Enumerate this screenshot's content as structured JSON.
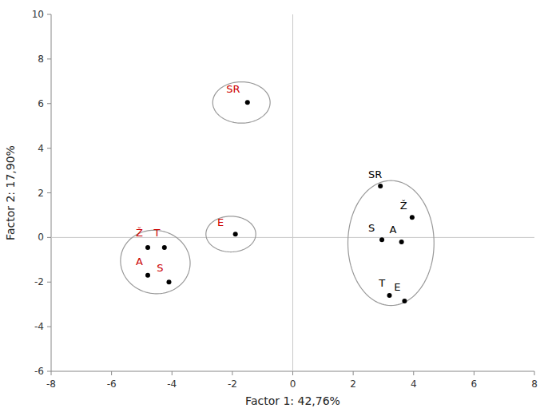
{
  "chart_data": {
    "type": "scatter",
    "xlabel": "Factor 1: 42,76%",
    "ylabel": "Factor 2: 17,90%",
    "xlim": [
      -8,
      8
    ],
    "ylim": [
      -6,
      10
    ],
    "xticks": [
      -8,
      -6,
      -4,
      -2,
      0,
      2,
      4,
      6,
      8
    ],
    "yticks": [
      -6,
      -4,
      -2,
      0,
      2,
      4,
      6,
      8,
      10
    ],
    "color": "#000000",
    "series": [
      {
        "color": "#cc0000",
        "labels": [
          "SR",
          "E",
          "Ž",
          "T",
          "A",
          "S"
        ],
        "x": [
          -1.5,
          -1.9,
          -4.8,
          -4.25,
          -4.8,
          -4.1
        ],
        "values": [
          6.05,
          0.15,
          -0.45,
          -0.45,
          -1.7,
          -2.0
        ],
        "label_x": [
          -2.2,
          -2.5,
          -5.2,
          -4.6,
          -5.2,
          -4.5
        ],
        "label_y": [
          6.4,
          0.4,
          -0.05,
          -0.05,
          -1.35,
          -1.65
        ]
      },
      {
        "color": "#000000",
        "labels": [
          "SR",
          "Ž",
          "S",
          "A",
          "T",
          "E"
        ],
        "x": [
          2.9,
          3.95,
          2.95,
          3.6,
          3.2,
          3.7
        ],
        "values": [
          2.3,
          0.9,
          -0.1,
          -0.2,
          -2.6,
          -2.85
        ],
        "label_x": [
          2.5,
          3.55,
          2.5,
          3.2,
          2.85,
          3.35
        ],
        "label_y": [
          2.55,
          1.15,
          0.15,
          0.1,
          -2.3,
          -2.5
        ]
      }
    ],
    "ellipses": [
      {
        "cx": -1.7,
        "cy": 6.05,
        "width": 1.9,
        "height": 1.85,
        "angle": 0
      },
      {
        "cx": -2.05,
        "cy": 0.15,
        "width": 1.65,
        "height": 1.6,
        "angle": 0
      },
      {
        "cx": -4.55,
        "cy": -1.1,
        "width": 2.3,
        "height": 2.85,
        "angle": 5
      },
      {
        "cx": 3.25,
        "cy": -0.25,
        "width": 2.85,
        "height": 5.6,
        "angle": 0
      }
    ]
  }
}
